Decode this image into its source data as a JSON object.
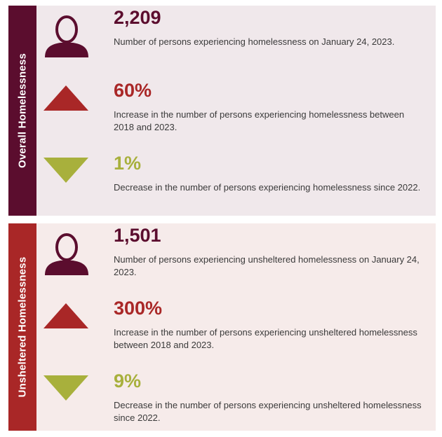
{
  "overall": {
    "section_label": "Overall Homelessness",
    "stats": [
      {
        "icon": "person-icon",
        "value": "2,209",
        "description": "Number of persons experiencing homelessness on January 24, 2023."
      },
      {
        "icon": "increase-triangle-icon",
        "value": "60%",
        "description": "Increase in the number of persons experiencing homelessness between 2018 and 2023."
      },
      {
        "icon": "decrease-triangle-icon",
        "value": "1%",
        "description": "Decrease in the number of persons experiencing homelessness since 2022."
      }
    ]
  },
  "unsheltered": {
    "section_label": "Unsheltered Homelessness",
    "stats": [
      {
        "icon": "person-icon",
        "value": "1,501",
        "description": "Number of persons experiencing unsheltered homelessness on January 24, 2023."
      },
      {
        "icon": "increase-triangle-icon",
        "value": "300%",
        "description": "Increase in the number of persons experiencing unsheltered homelessness between 2018 and 2023."
      },
      {
        "icon": "decrease-triangle-icon",
        "value": "9%",
        "description": "Decrease in the number of persons experiencing unsheltered homelessness since 2022."
      }
    ]
  },
  "colors": {
    "maroon": "#5b0d2e",
    "red": "#a92727",
    "olive": "#a8b03c",
    "panel_overall": "#f0e8eb",
    "panel_unsheltered": "#f6ebea"
  }
}
